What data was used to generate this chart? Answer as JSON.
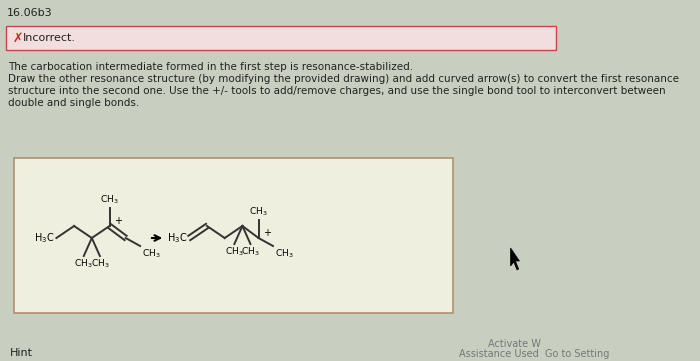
{
  "title": "16.06b3",
  "bg_color": "#c8cfc0",
  "incorrect_box_bg": "#f2dede",
  "incorrect_box_border": "#cc4444",
  "incorrect_text": "Incorrect.",
  "incorrect_x_color": "#cc2222",
  "body_line1": "The carbocation intermediate formed in the first step is resonance-stabilized.",
  "body_line2": "Draw the other resonance structure (by modifying the provided drawing) and add curved arrow(s) to convert the first resonance",
  "body_line3": "structure into the second one. Use the +/- tools to add/remove charges, and use the single bond tool to interconvert between",
  "body_line4": "double and single bonds.",
  "bottom_left": "Hint",
  "bottom_right1": "Activate W",
  "bottom_right2": "Assistance Used  Go to Setting",
  "chem_box_bg": "#efefdf",
  "chem_box_border": "#b09070",
  "text_color": "#222222",
  "bond_color": "#333333",
  "footnote_color": "#777777"
}
